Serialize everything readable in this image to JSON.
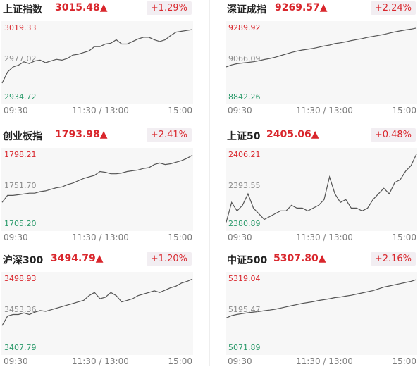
{
  "time_labels": {
    "open": "09:30",
    "mid": "11:30 / 13:00",
    "close": "15:00"
  },
  "colors": {
    "up": "#d9262c",
    "low": "#2a9a6a",
    "line": "#555555",
    "bg": "#f7f7f7"
  },
  "panels": [
    {
      "name": "上证指数",
      "price": "3015.48▲",
      "change": "+1.29%",
      "high": "3019.33",
      "mid": "2977.02",
      "low": "2934.72",
      "series": [
        2953,
        2966,
        2972,
        2974,
        2978,
        2976,
        2979,
        2980,
        2977,
        2979,
        2981,
        2980,
        2982,
        2986,
        2987,
        2989,
        2991,
        2996,
        2996,
        2999,
        3000,
        3004,
        2999,
        2999,
        3002,
        3005,
        3007,
        3007,
        3004,
        3002,
        3004,
        3009,
        3013,
        3014,
        3015,
        3016
      ]
    },
    {
      "name": "深证成指",
      "price": "9269.57▲",
      "change": "+2.24%",
      "high": "9289.92",
      "mid": "9066.09",
      "low": "8842.26",
      "series": [
        9040,
        9052,
        9060,
        9064,
        9068,
        9072,
        9078,
        9086,
        9092,
        9100,
        9110,
        9120,
        9130,
        9138,
        9145,
        9150,
        9155,
        9162,
        9170,
        9176,
        9185,
        9190,
        9196,
        9204,
        9210,
        9216,
        9224,
        9230,
        9236,
        9242,
        9250,
        9258,
        9264,
        9270,
        9275,
        9282
      ]
    },
    {
      "name": "创业板指",
      "price": "1793.98▲",
      "change": "+2.41%",
      "high": "1798.21",
      "mid": "1751.70",
      "low": "1705.20",
      "series": [
        1735,
        1744,
        1744,
        1745,
        1746,
        1747,
        1747,
        1749,
        1750,
        1752,
        1754,
        1755,
        1758,
        1760,
        1763,
        1766,
        1768,
        1770,
        1775,
        1774,
        1772,
        1772,
        1773,
        1775,
        1776,
        1777,
        1779,
        1780,
        1784,
        1786,
        1784,
        1785,
        1787,
        1789,
        1792,
        1796
      ]
    },
    {
      "name": "上证50",
      "price": "2405.06▲",
      "change": "+0.48%",
      "high": "2406.21",
      "mid": "2393.55",
      "low": "2380.89",
      "series": [
        2382,
        2389,
        2386,
        2388,
        2392,
        2387,
        2385,
        2383,
        2384,
        2385,
        2386,
        2386,
        2388,
        2387,
        2387,
        2386,
        2387,
        2388,
        2390,
        2398,
        2392,
        2389,
        2390,
        2387,
        2387,
        2386,
        2387,
        2390,
        2392,
        2394,
        2392,
        2396,
        2397,
        2400,
        2402,
        2406
      ]
    },
    {
      "name": "沪深300",
      "price": "3494.79▲",
      "change": "+1.20%",
      "high": "3498.93",
      "mid": "3453.36",
      "low": "3407.79",
      "series": [
        3438,
        3450,
        3452,
        3452,
        3454,
        3452,
        3455,
        3457,
        3456,
        3458,
        3460,
        3462,
        3464,
        3466,
        3468,
        3470,
        3476,
        3480,
        3472,
        3474,
        3480,
        3476,
        3468,
        3470,
        3472,
        3476,
        3478,
        3480,
        3482,
        3480,
        3483,
        3486,
        3488,
        3492,
        3494,
        3497
      ]
    },
    {
      "name": "中证500",
      "price": "5307.80▲",
      "change": "+2.16%",
      "high": "5319.04",
      "mid": "5195.47",
      "low": "5071.89",
      "series": [
        5180,
        5188,
        5192,
        5195,
        5198,
        5200,
        5202,
        5205,
        5207,
        5210,
        5214,
        5218,
        5222,
        5226,
        5230,
        5233,
        5236,
        5240,
        5243,
        5246,
        5250,
        5252,
        5255,
        5258,
        5262,
        5266,
        5270,
        5274,
        5280,
        5286,
        5290,
        5294,
        5298,
        5302,
        5306,
        5312
      ]
    }
  ]
}
